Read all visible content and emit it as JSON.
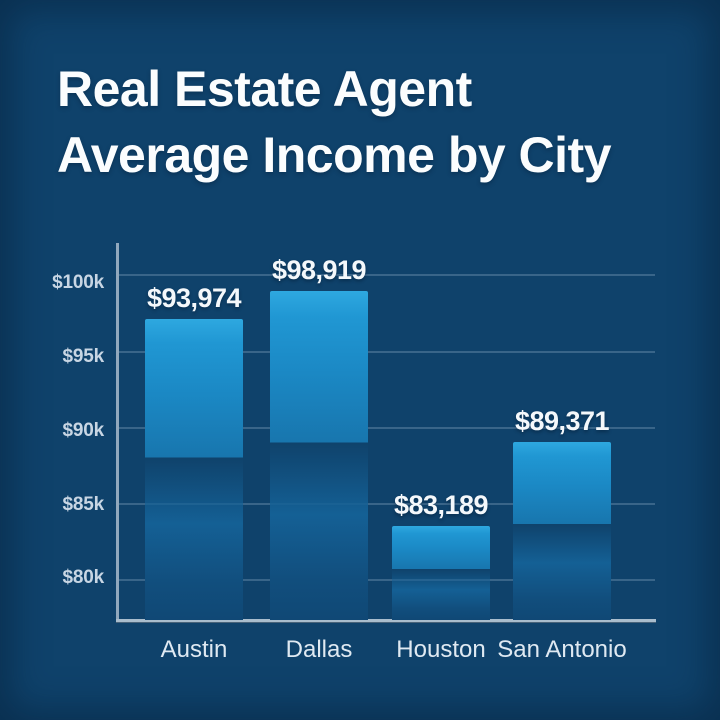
{
  "title": {
    "line1": "Real Estate Agent",
    "line2": "Average Income by City"
  },
  "chart_data": {
    "type": "bar",
    "title": "Real Estate Agent Average Income by City",
    "categories": [
      "Austin",
      "Dallas",
      "Houston",
      "San Antonio"
    ],
    "values": [
      93974,
      98919,
      83189,
      89371
    ],
    "value_labels": [
      "$93,974",
      "$98,919",
      "$83,189",
      "$89,371"
    ],
    "y_tick_labels": [
      "$100k",
      "$95k",
      "$90k",
      "$85k",
      "$80k"
    ],
    "y_tick_values": [
      100000,
      95000,
      90000,
      85000,
      80000
    ],
    "ylim": [
      77500,
      102000
    ],
    "xlabel": "",
    "ylabel": "",
    "grid": true,
    "legend": false,
    "bar_color_top": "#2ea8e0",
    "bar_color_bottom": "#104875"
  },
  "colors": {
    "background": "#0f426b",
    "axis_line": "#a9bdcd",
    "gridline": "rgba(168,193,216,0.28)",
    "title_text": "#fbfdfe",
    "tick_text": "#c8d6e4",
    "category_text": "#dfe9f2",
    "value_text": "#f4f8fb"
  }
}
